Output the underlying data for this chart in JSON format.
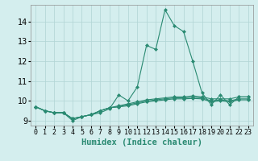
{
  "xlabel": "Humidex (Indice chaleur)",
  "x_values": [
    0,
    1,
    2,
    3,
    4,
    5,
    6,
    7,
    8,
    9,
    10,
    11,
    12,
    13,
    14,
    15,
    16,
    17,
    18,
    19,
    20,
    21,
    22,
    23
  ],
  "lines": [
    [
      9.7,
      9.5,
      9.4,
      9.4,
      9.0,
      9.2,
      9.3,
      9.4,
      9.6,
      10.3,
      10.0,
      10.7,
      12.8,
      12.6,
      14.6,
      13.8,
      13.5,
      12.0,
      10.4,
      9.8,
      10.3,
      9.8,
      10.2,
      10.2
    ],
    [
      9.7,
      9.5,
      9.4,
      9.4,
      9.1,
      9.2,
      9.3,
      9.5,
      9.65,
      9.75,
      9.85,
      9.95,
      10.05,
      10.1,
      10.15,
      10.2,
      10.2,
      10.25,
      10.2,
      10.1,
      10.1,
      10.1,
      10.2,
      10.2
    ],
    [
      9.7,
      9.5,
      9.4,
      9.4,
      9.1,
      9.2,
      9.3,
      9.5,
      9.65,
      9.7,
      9.8,
      9.9,
      9.98,
      10.05,
      10.1,
      10.15,
      10.15,
      10.18,
      10.15,
      10.0,
      10.05,
      10.0,
      10.1,
      10.1
    ],
    [
      9.7,
      9.5,
      9.4,
      9.4,
      9.1,
      9.2,
      9.3,
      9.5,
      9.65,
      9.7,
      9.75,
      9.85,
      9.95,
      10.0,
      10.05,
      10.1,
      10.1,
      10.12,
      10.1,
      9.95,
      10.0,
      9.95,
      10.05,
      10.05
    ]
  ],
  "line_color": "#2a8a72",
  "marker": "D",
  "marker_size": 2.0,
  "bg_color": "#d4eeee",
  "grid_color": "#b0d4d4",
  "ylim": [
    8.75,
    14.85
  ],
  "yticks": [
    9,
    10,
    11,
    12,
    13,
    14
  ],
  "xlim": [
    -0.5,
    23.5
  ],
  "tick_fontsize": 6,
  "label_fontsize": 7.5
}
